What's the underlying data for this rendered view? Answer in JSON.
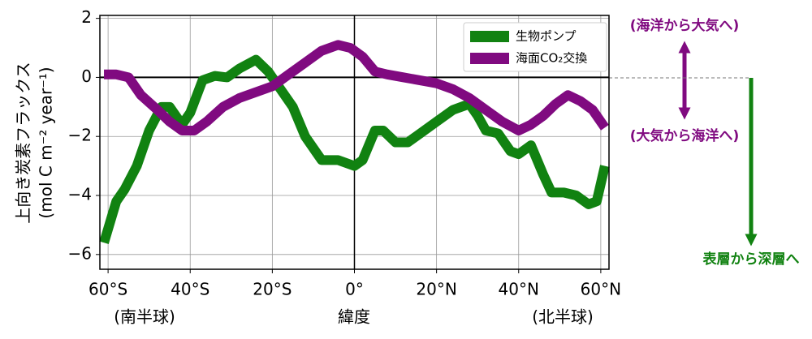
{
  "chart_data": {
    "type": "line",
    "ylabel": [
      "上向き炭素フラックス",
      "(mol C m⁻² year⁻¹)"
    ],
    "xlabel": "緯度",
    "annotations": {
      "south": "(南半球)",
      "north": "(北半球)",
      "up": "(海洋から大気へ)",
      "down": "(大気から海洋へ)",
      "deep": "表層から深層へ"
    },
    "xlim": [
      -62,
      62
    ],
    "ylim": [
      -6.5,
      2.1
    ],
    "xticks": [
      {
        "value": -60,
        "label": "60°S"
      },
      {
        "value": -40,
        "label": "40°S"
      },
      {
        "value": -20,
        "label": "20°S"
      },
      {
        "value": 0,
        "label": "0°"
      },
      {
        "value": 20,
        "label": "20°N"
      },
      {
        "value": 40,
        "label": "40°N"
      },
      {
        "value": 60,
        "label": "60°N"
      }
    ],
    "yticks": [
      {
        "value": -6,
        "label": "−6"
      },
      {
        "value": -4,
        "label": "−4"
      },
      {
        "value": -2,
        "label": "−2"
      },
      0,
      2
    ],
    "grid": true,
    "legend": "upper right",
    "series": [
      {
        "name": "生物ポンプ",
        "color": "#118211",
        "x": [
          -61,
          -58,
          -56,
          -53,
          -50,
          -47,
          -45,
          -42,
          -40,
          -37,
          -34,
          -31,
          -28,
          -24,
          -21,
          -18,
          -15,
          -12,
          -8,
          -4,
          -2,
          0,
          2,
          5,
          7,
          10,
          13,
          16,
          20,
          24,
          28,
          30,
          32,
          35,
          38,
          40,
          43,
          46,
          48,
          51,
          54,
          57,
          59,
          61
        ],
        "values": [
          -5.6,
          -4.2,
          -3.8,
          -3.0,
          -1.8,
          -1.0,
          -1.0,
          -1.6,
          -1.2,
          -0.1,
          0.05,
          0.0,
          0.3,
          0.6,
          0.2,
          -0.4,
          -1.0,
          -2.0,
          -2.8,
          -2.8,
          -2.9,
          -3.0,
          -2.8,
          -1.8,
          -1.8,
          -2.2,
          -2.2,
          -1.9,
          -1.5,
          -1.1,
          -0.9,
          -1.3,
          -1.8,
          -1.9,
          -2.5,
          -2.6,
          -2.3,
          -3.3,
          -3.9,
          -3.9,
          -4.0,
          -4.3,
          -4.2,
          -3.0
        ]
      },
      {
        "name": "海面CO₂交換",
        "color": "#800a80",
        "x": [
          -61,
          -58,
          -55,
          -52,
          -48,
          -45,
          -42,
          -39,
          -36,
          -32,
          -28,
          -24,
          -20,
          -16,
          -12,
          -8,
          -4,
          -1,
          2,
          5,
          8,
          12,
          16,
          20,
          24,
          28,
          32,
          36,
          40,
          43,
          46,
          49,
          52,
          55,
          58,
          61
        ],
        "values": [
          0.1,
          0.1,
          0.0,
          -0.6,
          -1.1,
          -1.5,
          -1.8,
          -1.8,
          -1.5,
          -1.0,
          -0.7,
          -0.5,
          -0.3,
          0.1,
          0.5,
          0.9,
          1.1,
          1.0,
          0.7,
          0.2,
          0.1,
          0.0,
          -0.1,
          -0.2,
          -0.4,
          -0.7,
          -1.1,
          -1.5,
          -1.8,
          -1.6,
          -1.3,
          -0.9,
          -0.6,
          -0.8,
          -1.1,
          -1.7
        ]
      }
    ]
  }
}
